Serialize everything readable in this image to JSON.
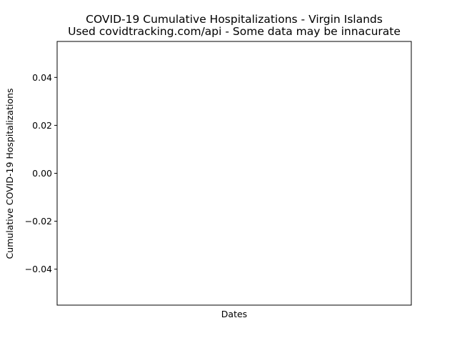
{
  "chart_data": {
    "type": "line",
    "title": "COVID-19 Cumulative Hospitalizations - Virgin Islands",
    "subtitle": "Used covidtracking.com/api - Some data may be innacurate",
    "xlabel": "Dates",
    "ylabel": "Cumulative COVID-19 Hospitalizations",
    "ylim": [
      -0.055,
      0.055
    ],
    "yticks": [
      -0.04,
      -0.02,
      0.0,
      0.02,
      0.04
    ],
    "ytick_labels": [
      "−0.04",
      "−0.02",
      "0.00",
      "0.02",
      "0.04"
    ],
    "x": [],
    "series": [
      {
        "values": []
      }
    ],
    "grid": false,
    "legend": "none"
  },
  "colors": {
    "axes": "#000000",
    "background": "#ffffff"
  }
}
